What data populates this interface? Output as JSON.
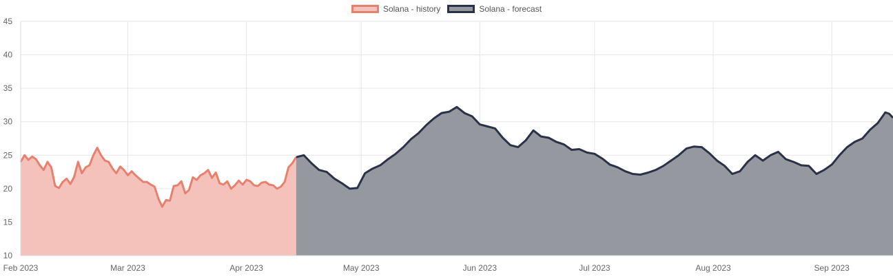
{
  "chart_data": {
    "type": "area",
    "ylim": [
      10,
      45
    ],
    "yticks": [
      10,
      15,
      20,
      25,
      30,
      35,
      40,
      45
    ],
    "x_ticks": [
      {
        "date": "2023-02-01",
        "label": "Feb 2023"
      },
      {
        "date": "2023-03-01",
        "label": "Mar 2023"
      },
      {
        "date": "2023-04-01",
        "label": "Apr 2023"
      },
      {
        "date": "2023-05-01",
        "label": "May 2023"
      },
      {
        "date": "2023-06-01",
        "label": "Jun 2023"
      },
      {
        "date": "2023-07-01",
        "label": "Jul 2023"
      },
      {
        "date": "2023-08-01",
        "label": "Aug 2023"
      },
      {
        "date": "2023-09-01",
        "label": "Sep 2023"
      }
    ],
    "xlim": [
      "2023-02-01",
      "2023-09-17"
    ],
    "grid": true,
    "legend_position": "top-center",
    "series": [
      {
        "name": "Solana - history",
        "line_color": "#e8806f",
        "fill_color": "#f5c2bb",
        "points": [
          [
            "2023-02-01",
            24.0
          ],
          [
            "2023-02-02",
            25.0
          ],
          [
            "2023-02-03",
            24.3
          ],
          [
            "2023-02-04",
            24.8
          ],
          [
            "2023-02-05",
            24.4
          ],
          [
            "2023-02-06",
            23.5
          ],
          [
            "2023-02-07",
            22.8
          ],
          [
            "2023-02-08",
            24.0
          ],
          [
            "2023-02-09",
            23.2
          ],
          [
            "2023-02-10",
            20.4
          ],
          [
            "2023-02-11",
            20.1
          ],
          [
            "2023-02-12",
            21.0
          ],
          [
            "2023-02-13",
            21.5
          ],
          [
            "2023-02-14",
            20.7
          ],
          [
            "2023-02-15",
            21.8
          ],
          [
            "2023-02-16",
            24.0
          ],
          [
            "2023-02-17",
            22.3
          ],
          [
            "2023-02-18",
            23.2
          ],
          [
            "2023-02-19",
            23.5
          ],
          [
            "2023-02-20",
            25.0
          ],
          [
            "2023-02-21",
            26.1
          ],
          [
            "2023-02-22",
            25.0
          ],
          [
            "2023-02-23",
            24.2
          ],
          [
            "2023-02-24",
            24.0
          ],
          [
            "2023-02-25",
            23.0
          ],
          [
            "2023-02-26",
            22.3
          ],
          [
            "2023-02-27",
            23.3
          ],
          [
            "2023-02-28",
            22.8
          ],
          [
            "2023-03-01",
            22.0
          ],
          [
            "2023-03-02",
            22.6
          ],
          [
            "2023-03-03",
            22.0
          ],
          [
            "2023-03-04",
            21.5
          ],
          [
            "2023-03-05",
            21.0
          ],
          [
            "2023-03-06",
            21.0
          ],
          [
            "2023-03-07",
            20.6
          ],
          [
            "2023-03-08",
            20.3
          ],
          [
            "2023-03-09",
            18.5
          ],
          [
            "2023-03-10",
            17.3
          ],
          [
            "2023-03-11",
            18.3
          ],
          [
            "2023-03-12",
            18.2
          ],
          [
            "2023-03-13",
            20.4
          ],
          [
            "2023-03-14",
            20.5
          ],
          [
            "2023-03-15",
            21.1
          ],
          [
            "2023-03-16",
            19.3
          ],
          [
            "2023-03-17",
            19.8
          ],
          [
            "2023-03-18",
            21.7
          ],
          [
            "2023-03-19",
            21.3
          ],
          [
            "2023-03-20",
            22.0
          ],
          [
            "2023-03-21",
            22.3
          ],
          [
            "2023-03-22",
            22.8
          ],
          [
            "2023-03-23",
            21.6
          ],
          [
            "2023-03-24",
            22.4
          ],
          [
            "2023-03-25",
            20.8
          ],
          [
            "2023-03-26",
            20.6
          ],
          [
            "2023-03-27",
            21.1
          ],
          [
            "2023-03-28",
            20.0
          ],
          [
            "2023-03-29",
            20.5
          ],
          [
            "2023-03-30",
            21.2
          ],
          [
            "2023-03-31",
            20.6
          ],
          [
            "2023-04-01",
            21.3
          ],
          [
            "2023-04-02",
            21.1
          ],
          [
            "2023-04-03",
            20.5
          ],
          [
            "2023-04-04",
            20.4
          ],
          [
            "2023-04-05",
            20.9
          ],
          [
            "2023-04-06",
            21.0
          ],
          [
            "2023-04-07",
            20.6
          ],
          [
            "2023-04-08",
            20.5
          ],
          [
            "2023-04-09",
            20.0
          ],
          [
            "2023-04-10",
            20.3
          ],
          [
            "2023-04-11",
            21.0
          ],
          [
            "2023-04-12",
            23.2
          ],
          [
            "2023-04-13",
            23.8
          ],
          [
            "2023-04-14",
            24.7
          ]
        ]
      },
      {
        "name": "Solana - forecast",
        "line_color": "#2b3149",
        "fill_color": "#95989f",
        "points": [
          [
            "2023-04-14",
            24.7
          ],
          [
            "2023-04-16",
            25.0
          ],
          [
            "2023-04-18",
            23.8
          ],
          [
            "2023-04-20",
            22.8
          ],
          [
            "2023-04-22",
            22.5
          ],
          [
            "2023-04-24",
            21.5
          ],
          [
            "2023-04-26",
            20.8
          ],
          [
            "2023-04-28",
            20.0
          ],
          [
            "2023-04-30",
            20.1
          ],
          [
            "2023-05-02",
            22.3
          ],
          [
            "2023-05-04",
            23.0
          ],
          [
            "2023-05-06",
            23.5
          ],
          [
            "2023-05-08",
            24.4
          ],
          [
            "2023-05-10",
            25.2
          ],
          [
            "2023-05-12",
            26.2
          ],
          [
            "2023-05-14",
            27.4
          ],
          [
            "2023-05-16",
            28.3
          ],
          [
            "2023-05-18",
            29.5
          ],
          [
            "2023-05-20",
            30.5
          ],
          [
            "2023-05-22",
            31.3
          ],
          [
            "2023-05-24",
            31.5
          ],
          [
            "2023-05-26",
            32.2
          ],
          [
            "2023-05-28",
            31.3
          ],
          [
            "2023-05-30",
            30.8
          ],
          [
            "2023-06-01",
            29.6
          ],
          [
            "2023-06-03",
            29.3
          ],
          [
            "2023-06-05",
            29.0
          ],
          [
            "2023-06-07",
            27.6
          ],
          [
            "2023-06-09",
            26.5
          ],
          [
            "2023-06-11",
            26.2
          ],
          [
            "2023-06-13",
            27.2
          ],
          [
            "2023-06-15",
            28.7
          ],
          [
            "2023-06-17",
            27.8
          ],
          [
            "2023-06-19",
            27.6
          ],
          [
            "2023-06-21",
            27.0
          ],
          [
            "2023-06-23",
            26.6
          ],
          [
            "2023-06-25",
            25.8
          ],
          [
            "2023-06-27",
            25.9
          ],
          [
            "2023-06-29",
            25.4
          ],
          [
            "2023-07-01",
            25.2
          ],
          [
            "2023-07-03",
            24.5
          ],
          [
            "2023-07-05",
            23.6
          ],
          [
            "2023-07-07",
            23.2
          ],
          [
            "2023-07-09",
            22.6
          ],
          [
            "2023-07-11",
            22.2
          ],
          [
            "2023-07-13",
            22.1
          ],
          [
            "2023-07-15",
            22.4
          ],
          [
            "2023-07-17",
            22.8
          ],
          [
            "2023-07-19",
            23.4
          ],
          [
            "2023-07-21",
            24.2
          ],
          [
            "2023-07-23",
            25.0
          ],
          [
            "2023-07-25",
            26.0
          ],
          [
            "2023-07-27",
            26.3
          ],
          [
            "2023-07-29",
            26.2
          ],
          [
            "2023-07-31",
            25.3
          ],
          [
            "2023-08-02",
            24.2
          ],
          [
            "2023-08-04",
            23.4
          ],
          [
            "2023-08-06",
            22.2
          ],
          [
            "2023-08-08",
            22.6
          ],
          [
            "2023-08-10",
            24.0
          ],
          [
            "2023-08-12",
            25.0
          ],
          [
            "2023-08-14",
            24.2
          ],
          [
            "2023-08-16",
            25.0
          ],
          [
            "2023-08-18",
            25.5
          ],
          [
            "2023-08-20",
            24.4
          ],
          [
            "2023-08-22",
            24.0
          ],
          [
            "2023-08-24",
            23.5
          ],
          [
            "2023-08-26",
            23.4
          ],
          [
            "2023-08-28",
            22.2
          ],
          [
            "2023-08-30",
            22.8
          ],
          [
            "2023-09-01",
            23.6
          ],
          [
            "2023-09-03",
            25.0
          ],
          [
            "2023-09-05",
            26.2
          ],
          [
            "2023-09-07",
            27.0
          ],
          [
            "2023-09-09",
            27.5
          ],
          [
            "2023-09-11",
            28.8
          ],
          [
            "2023-09-13",
            29.8
          ],
          [
            "2023-09-15",
            31.4
          ],
          [
            "2023-09-16",
            31.2
          ],
          [
            "2023-09-17",
            30.6
          ]
        ]
      }
    ]
  }
}
